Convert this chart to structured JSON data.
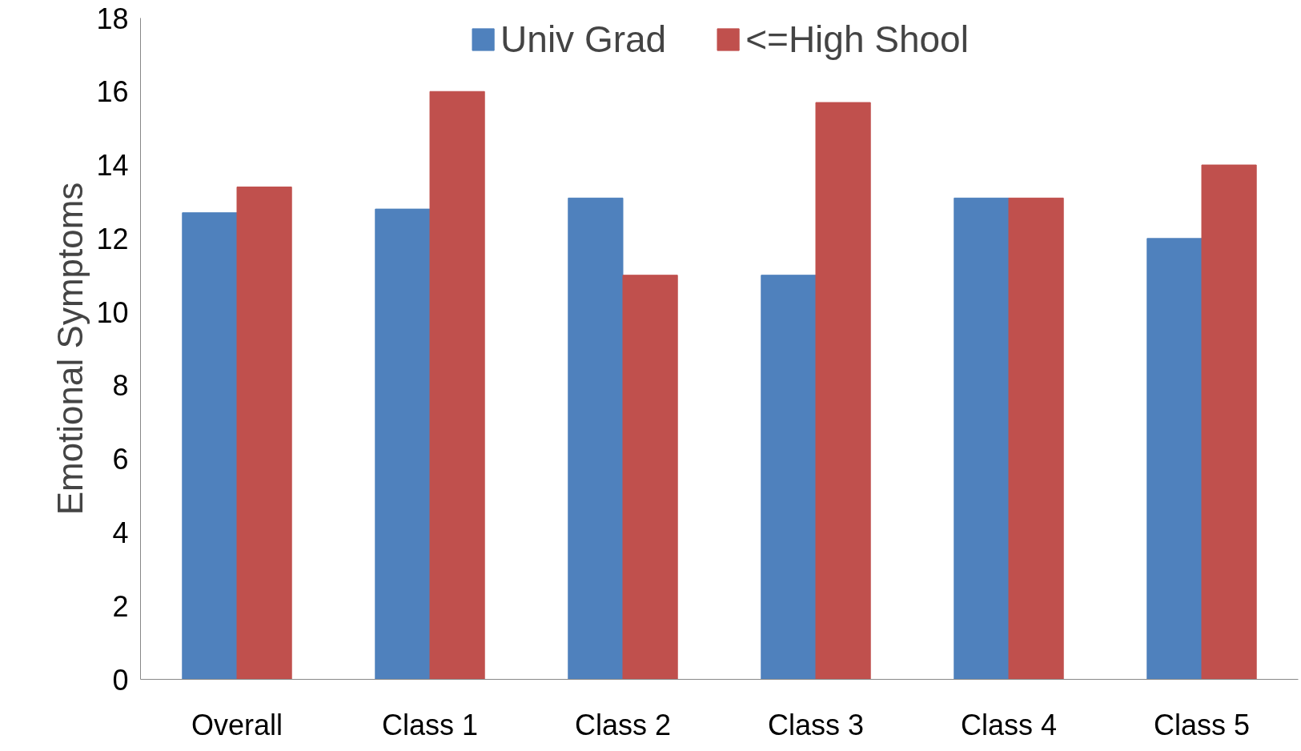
{
  "chart_data": {
    "type": "bar",
    "ylabel": "Emotional Symptoms",
    "categories": [
      "Overall",
      "Class 1",
      "Class 2",
      "Class 3",
      "Class 4",
      "Class 5"
    ],
    "series": [
      {
        "name": "Univ Grad",
        "color": "#4f81bd",
        "values": [
          12.7,
          12.8,
          13.1,
          11.0,
          13.1,
          12.0
        ]
      },
      {
        "name": "<=High Shool",
        "color": "#c0504d",
        "values": [
          13.4,
          16.0,
          11.0,
          15.7,
          13.1,
          14.0
        ]
      }
    ],
    "ylim": [
      0,
      18
    ],
    "yticks": [
      0,
      2,
      4,
      6,
      8,
      10,
      12,
      14,
      16,
      18
    ],
    "grid": false,
    "legend": "top"
  }
}
